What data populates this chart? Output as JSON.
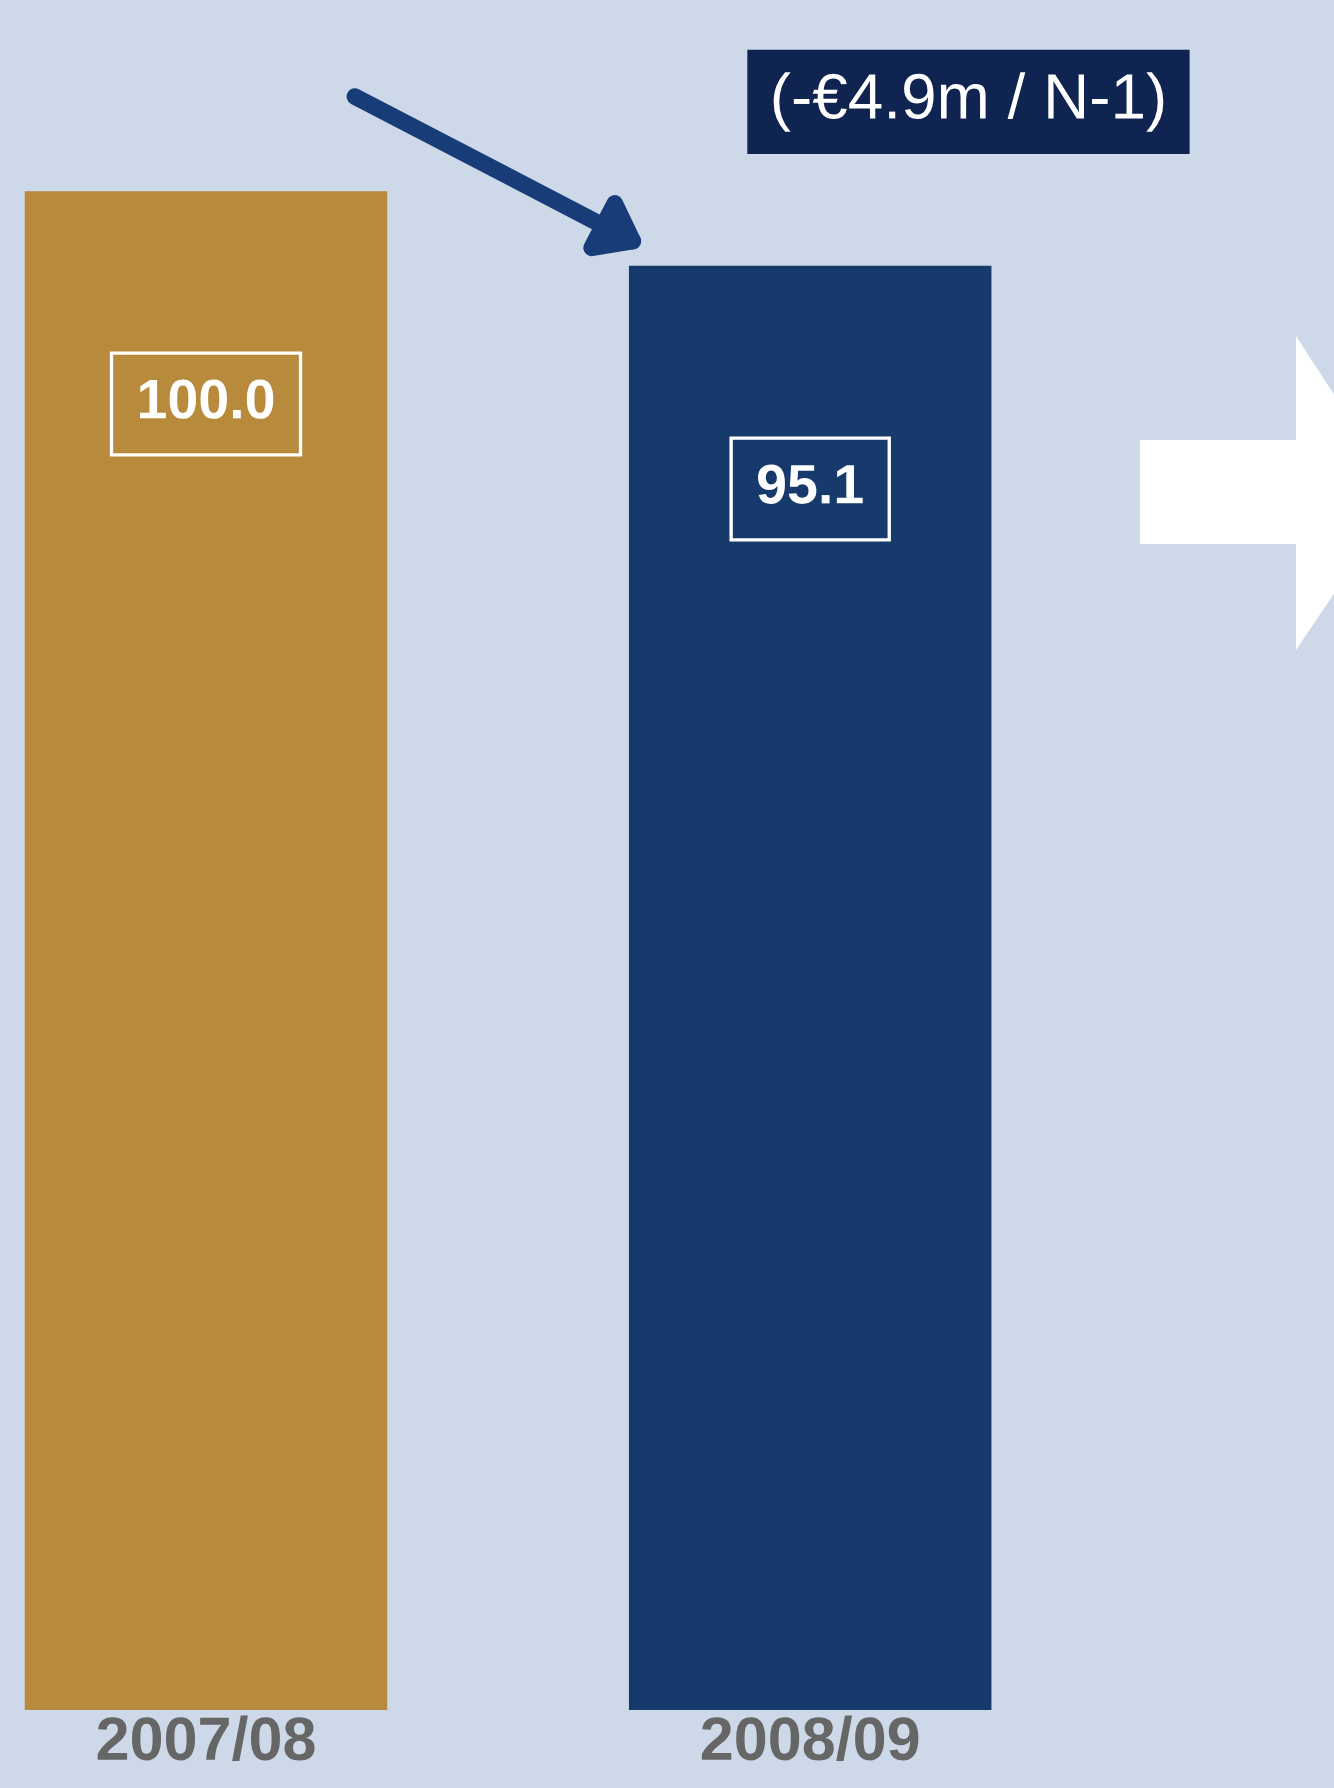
{
  "chart_data": {
    "type": "bar",
    "categories": [
      "2007/08",
      "2008/09"
    ],
    "values": [
      100.0,
      95.1
    ],
    "colors": [
      "#b88a3c",
      "#163a6c"
    ],
    "value_labels": [
      "100.0",
      "95.1"
    ],
    "annotations": [
      "(-€4.9m / N-1)"
    ],
    "grid": false
  }
}
